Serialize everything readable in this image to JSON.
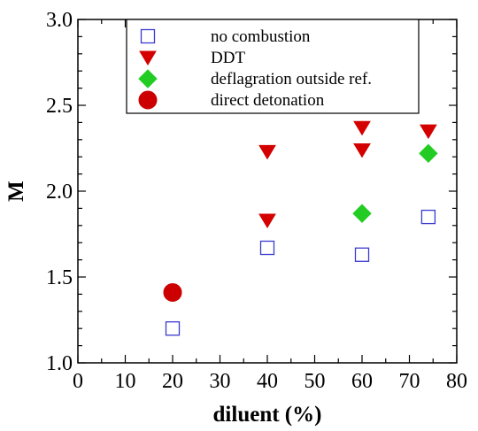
{
  "chart_data": {
    "type": "scatter",
    "title": "",
    "xlabel": "diluent (%)",
    "ylabel": "M",
    "xlim": [
      0,
      80
    ],
    "ylim": [
      1.0,
      3.0
    ],
    "xticks": [
      0,
      10,
      20,
      30,
      40,
      50,
      60,
      70,
      80
    ],
    "yticks": [
      "1.0",
      "1.5",
      "2.0",
      "2.5",
      "3.0"
    ],
    "legend_position": "top-center",
    "grid": false,
    "series": [
      {
        "name": "no combustion",
        "marker": "open-square",
        "color": "#3a3ad0",
        "points": [
          [
            20,
            1.2
          ],
          [
            40,
            1.67
          ],
          [
            60,
            1.63
          ],
          [
            74,
            1.85
          ]
        ]
      },
      {
        "name": "DDT",
        "marker": "down-triangle",
        "color": "#d40000",
        "points": [
          [
            40,
            2.23
          ],
          [
            40,
            1.83
          ],
          [
            60,
            2.37
          ],
          [
            60,
            2.24
          ],
          [
            74,
            2.35
          ]
        ]
      },
      {
        "name": "deflagration outside ref.",
        "marker": "diamond",
        "color": "#22cc22",
        "points": [
          [
            60,
            1.87
          ],
          [
            74,
            2.22
          ]
        ]
      },
      {
        "name": "direct detonation",
        "marker": "circle",
        "color": "#cc0000",
        "points": [
          [
            20,
            1.41
          ]
        ]
      }
    ]
  }
}
